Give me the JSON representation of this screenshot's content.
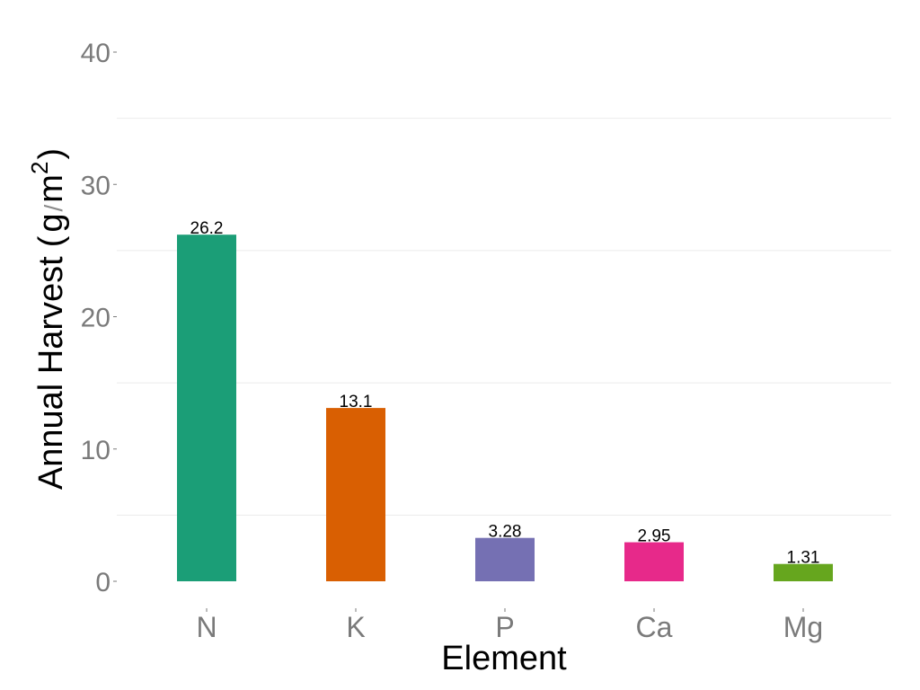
{
  "chart_data": {
    "type": "bar",
    "categories": [
      "N",
      "K",
      "P",
      "Ca",
      "Mg"
    ],
    "values": [
      26.2,
      13.1,
      3.28,
      2.95,
      1.31
    ],
    "data_labels": [
      "26.2",
      "13.1",
      "3.28",
      "2.95",
      "1.31"
    ],
    "bar_colors": [
      "#1b9e77",
      "#d95f02",
      "#7570b3",
      "#e7298a",
      "#66a61e"
    ],
    "xlabel": "Element",
    "ylabel": {
      "text": "Annual Harvest",
      "open_paren": "(",
      "unit_base": "g",
      "slash": "/",
      "unit_denom": "m",
      "exponent": "2",
      "close_paren": ")"
    },
    "ylim": [
      0,
      40
    ],
    "y_ticks": [
      0,
      10,
      20,
      30,
      40
    ],
    "y_tick_labels": [
      "0",
      "10",
      "20",
      "30",
      "40"
    ],
    "grid": true,
    "gridline_color": "#ebebeb",
    "tick_color": "#7a7a7a",
    "legend": "none"
  }
}
